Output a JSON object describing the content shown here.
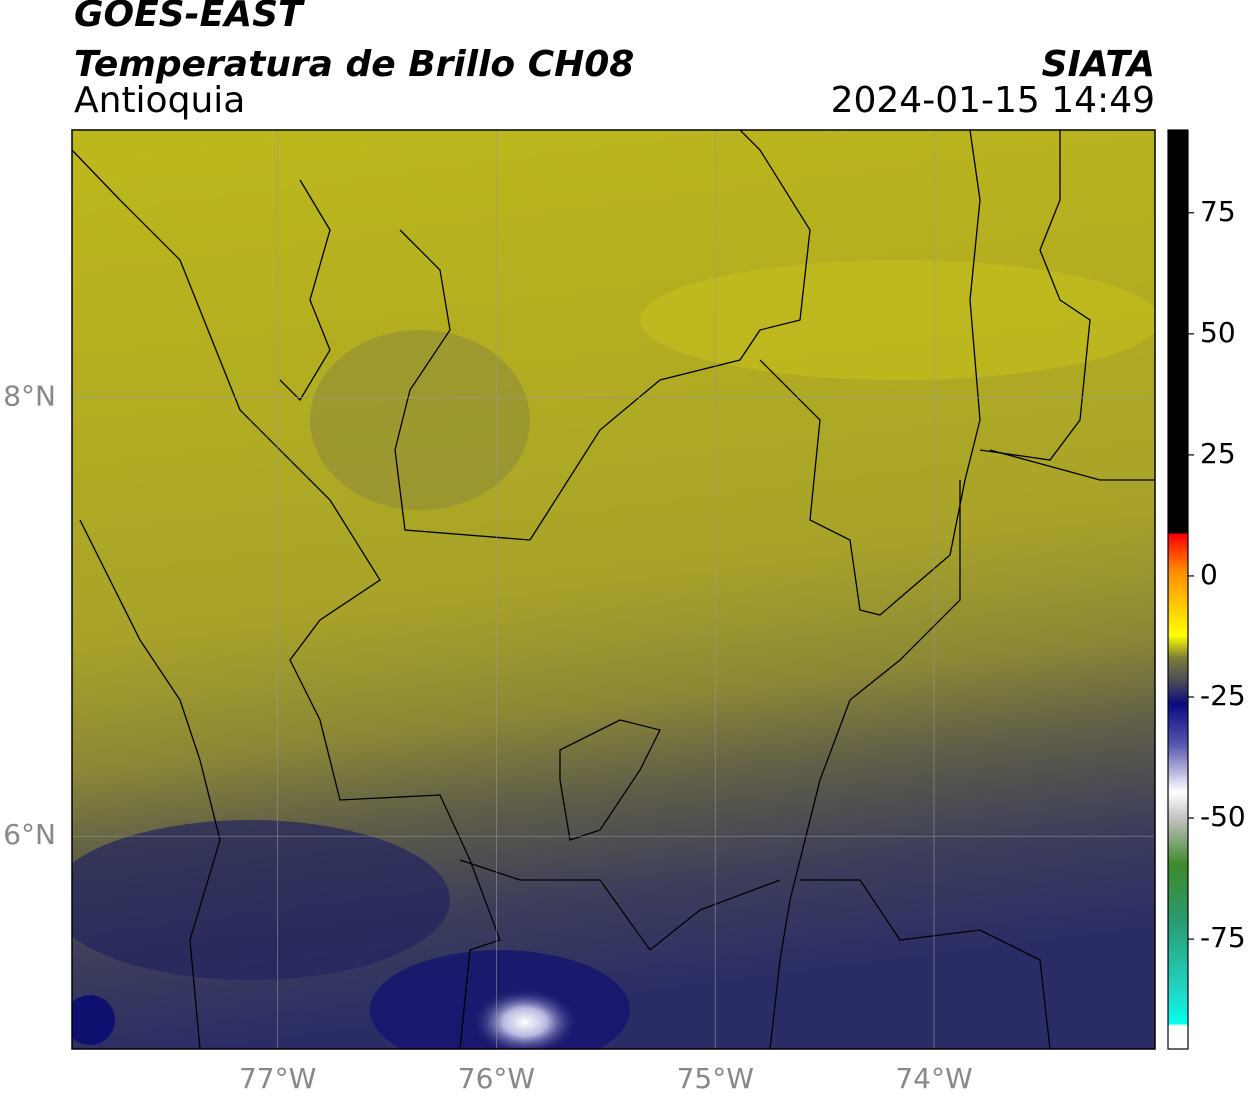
{
  "header": {
    "title": "GOES-EAST",
    "subtitle": "Temperatura de Brillo CH08",
    "region": "Antioquia",
    "source": "SIATA",
    "timestamp": "2024-01-15 14:49"
  },
  "map": {
    "xlim": [
      -77.94,
      -72.99
    ],
    "ylim": [
      5.03,
      9.22
    ],
    "xticks": [
      {
        "value": -77,
        "label": "77°W"
      },
      {
        "value": -76,
        "label": "76°W"
      },
      {
        "value": -75,
        "label": "75°W"
      },
      {
        "value": -74,
        "label": "74°W"
      }
    ],
    "yticks": [
      {
        "value": 6,
        "label": "6°N"
      },
      {
        "value": 8,
        "label": "8°N"
      }
    ],
    "grid": true
  },
  "colorbar": {
    "lim": [
      -97.7,
      92.1
    ],
    "ticks": [
      -75,
      -50,
      -25,
      0,
      25,
      50,
      75
    ]
  }
}
